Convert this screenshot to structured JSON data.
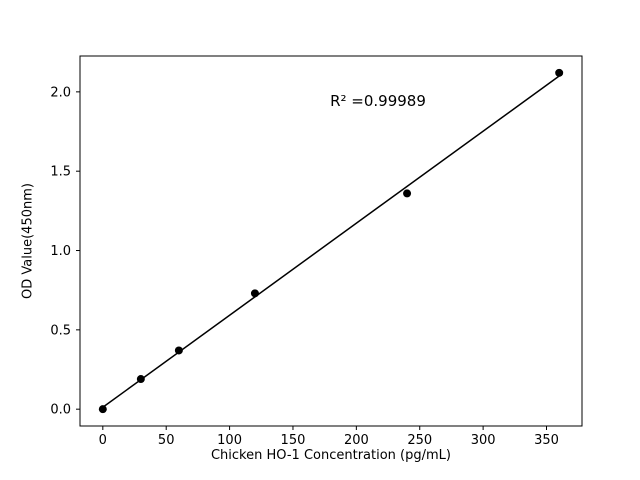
{
  "chart_data": {
    "type": "scatter",
    "title": "",
    "xlabel": "Chicken HO-1 Concentration (pg/mL)",
    "ylabel": "OD Value(450nm)",
    "annotation": "R² =0.99989",
    "x": [
      0,
      30,
      60,
      120,
      240,
      360
    ],
    "y": [
      0.0,
      0.19,
      0.37,
      0.73,
      1.36,
      2.12
    ],
    "fit_line": {
      "x_start": 0,
      "x_end": 360
    },
    "xticks": [
      0,
      50,
      100,
      150,
      200,
      250,
      300,
      350
    ],
    "xtick_labels": [
      "0",
      "50",
      "100",
      "150",
      "200",
      "250",
      "300",
      "350"
    ],
    "yticks": [
      0.0,
      0.5,
      1.0,
      1.5,
      2.0
    ],
    "ytick_labels": [
      "0.0",
      "0.5",
      "1.0",
      "1.5",
      "2.0"
    ],
    "xlim": [
      -18,
      378
    ],
    "ylim": [
      -0.106,
      2.226
    ],
    "marker_color": "#000000",
    "line_color": "#000000",
    "legend": "none",
    "grid": false
  }
}
